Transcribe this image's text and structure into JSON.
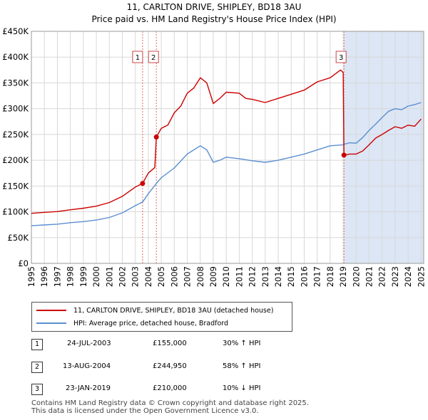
{
  "chart_data": {
    "type": "line",
    "title": "11, CARLTON DRIVE, SHIPLEY, BD18 3AU",
    "subtitle": "Price paid vs. HM Land Registry's House Price Index (HPI)",
    "x_range": [
      1995,
      2025.2
    ],
    "ylim": [
      0,
      450000
    ],
    "y_ticks": [
      0,
      50000,
      100000,
      150000,
      200000,
      250000,
      300000,
      350000,
      400000,
      450000
    ],
    "y_tick_labels": [
      "£0",
      "£50K",
      "£100K",
      "£150K",
      "£200K",
      "£250K",
      "£300K",
      "£350K",
      "£400K",
      "£450K"
    ],
    "x_ticks": [
      1995,
      1996,
      1997,
      1998,
      1999,
      2000,
      2001,
      2002,
      2003,
      2004,
      2005,
      2006,
      2007,
      2008,
      2009,
      2010,
      2011,
      2012,
      2013,
      2014,
      2015,
      2016,
      2017,
      2018,
      2019,
      2020,
      2021,
      2022,
      2023,
      2024,
      2025
    ],
    "x_tick_labels": [
      "1995",
      "1996",
      "1997",
      "1998",
      "1999",
      "2000",
      "2001",
      "2002",
      "2003",
      "2004",
      "2005",
      "2006",
      "2007",
      "2008",
      "2009",
      "2010",
      "2011",
      "2012",
      "2013",
      "2014",
      "2015",
      "2016",
      "2017",
      "2018",
      "2019",
      "2020",
      "2021",
      "2022",
      "2023",
      "2024",
      "2025"
    ],
    "series": [
      {
        "name": "11, CARLTON DRIVE, SHIPLEY, BD18 3AU (detached house)",
        "color": "#cc0000",
        "points": [
          [
            1995.0,
            97000
          ],
          [
            1996.0,
            99000
          ],
          [
            1997.0,
            100500
          ],
          [
            1998.0,
            104000
          ],
          [
            1999.0,
            107000
          ],
          [
            2000.0,
            111000
          ],
          [
            2001.0,
            118000
          ],
          [
            2002.0,
            130000
          ],
          [
            2003.0,
            148000
          ],
          [
            2003.56,
            155000
          ],
          [
            2004.0,
            175000
          ],
          [
            2004.5,
            186000
          ],
          [
            2004.62,
            244950
          ],
          [
            2005.0,
            262000
          ],
          [
            2005.5,
            268000
          ],
          [
            2006.0,
            292000
          ],
          [
            2006.5,
            305000
          ],
          [
            2007.0,
            330000
          ],
          [
            2007.5,
            340000
          ],
          [
            2008.0,
            360000
          ],
          [
            2008.5,
            350000
          ],
          [
            2009.0,
            310000
          ],
          [
            2009.5,
            320000
          ],
          [
            2010.0,
            332000
          ],
          [
            2011.0,
            330000
          ],
          [
            2011.5,
            320000
          ],
          [
            2012.0,
            318000
          ],
          [
            2013.0,
            312000
          ],
          [
            2014.0,
            320000
          ],
          [
            2015.0,
            328000
          ],
          [
            2016.0,
            336000
          ],
          [
            2017.0,
            352000
          ],
          [
            2018.0,
            360000
          ],
          [
            2018.8,
            375000
          ],
          [
            2019.0,
            370000
          ],
          [
            2019.06,
            210000
          ],
          [
            2019.5,
            212000
          ],
          [
            2020.0,
            212000
          ],
          [
            2020.5,
            218000
          ],
          [
            2021.0,
            230000
          ],
          [
            2021.5,
            243000
          ],
          [
            2022.0,
            250000
          ],
          [
            2022.5,
            258000
          ],
          [
            2023.0,
            265000
          ],
          [
            2023.5,
            262000
          ],
          [
            2024.0,
            268000
          ],
          [
            2024.5,
            266000
          ],
          [
            2025.0,
            280000
          ]
        ]
      },
      {
        "name": "HPI: Average price, detached house, Bradford",
        "color": "#5b8fd1",
        "points": [
          [
            1995.0,
            73000
          ],
          [
            1996.0,
            74500
          ],
          [
            1997.0,
            76000
          ],
          [
            1998.0,
            79000
          ],
          [
            1999.0,
            81000
          ],
          [
            2000.0,
            84000
          ],
          [
            2001.0,
            89000
          ],
          [
            2002.0,
            98000
          ],
          [
            2003.0,
            112000
          ],
          [
            2003.56,
            119000
          ],
          [
            2004.0,
            135000
          ],
          [
            2004.62,
            155000
          ],
          [
            2005.0,
            166000
          ],
          [
            2006.0,
            185000
          ],
          [
            2007.0,
            212000
          ],
          [
            2008.0,
            228000
          ],
          [
            2008.5,
            220000
          ],
          [
            2009.0,
            196000
          ],
          [
            2009.5,
            200000
          ],
          [
            2010.0,
            206000
          ],
          [
            2011.0,
            203000
          ],
          [
            2012.0,
            199000
          ],
          [
            2013.0,
            196000
          ],
          [
            2014.0,
            200000
          ],
          [
            2015.0,
            206000
          ],
          [
            2016.0,
            212000
          ],
          [
            2017.0,
            220000
          ],
          [
            2018.0,
            228000
          ],
          [
            2019.0,
            230000
          ],
          [
            2019.06,
            231000
          ],
          [
            2019.5,
            234000
          ],
          [
            2020.0,
            233000
          ],
          [
            2020.5,
            244000
          ],
          [
            2021.0,
            258000
          ],
          [
            2021.5,
            270000
          ],
          [
            2022.0,
            283000
          ],
          [
            2022.5,
            295000
          ],
          [
            2023.0,
            300000
          ],
          [
            2023.5,
            298000
          ],
          [
            2024.0,
            305000
          ],
          [
            2024.5,
            308000
          ],
          [
            2025.0,
            312000
          ]
        ]
      }
    ],
    "sales": [
      {
        "num": "1",
        "x": 2003.56,
        "y": 155000,
        "date": "24-JUL-2003",
        "price": "£155,000",
        "hpi": "30% ↑ HPI"
      },
      {
        "num": "2",
        "x": 2004.62,
        "y": 244950,
        "date": "13-AUG-2004",
        "price": "£244,950",
        "hpi": "58% ↑ HPI"
      },
      {
        "num": "3",
        "x": 2019.06,
        "y": 210000,
        "date": "23-JAN-2019",
        "price": "£210,000",
        "hpi": "10% ↓ HPI"
      }
    ],
    "marker_color": "#cc0000",
    "band_color": "#dce6f5"
  },
  "legend": {
    "series1": "11, CARLTON DRIVE, SHIPLEY, BD18 3AU (detached house)",
    "series2": "HPI: Average price, detached house, Bradford"
  },
  "footer": {
    "line1": "Contains HM Land Registry data © Crown copyright and database right 2025.",
    "line2": "This data is licensed under the Open Government Licence v3.0."
  }
}
